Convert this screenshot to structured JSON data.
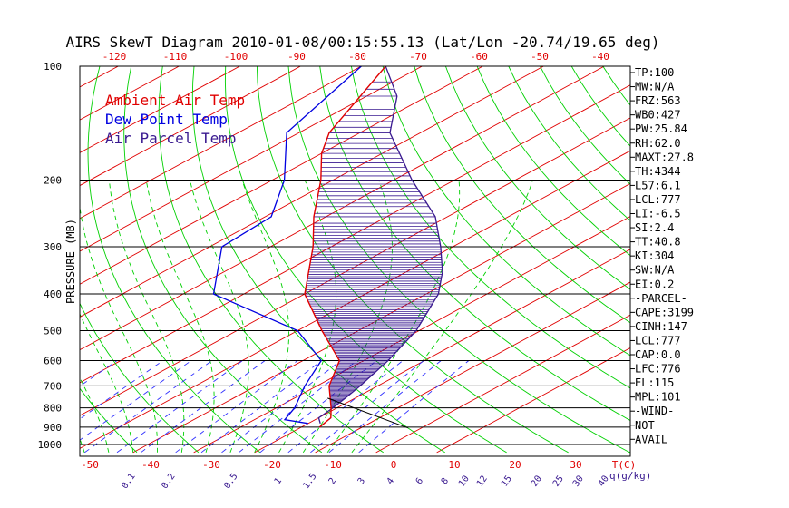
{
  "chart_data": {
    "type": "line",
    "title": "AIRS SkewT Diagram 2010-01-08/00:15:55.13 (Lat/Lon -20.74/19.65 deg)",
    "ylabel": "PRESSURE (MB)",
    "y_scale": "log",
    "y_reversed": true,
    "ylim": [
      100,
      1050
    ],
    "xlim": [
      -50,
      40
    ],
    "pressure_ticks": [
      100,
      200,
      300,
      400,
      500,
      600,
      700,
      800,
      900,
      1000
    ],
    "pressure_tick_labels": [
      "100",
      "200",
      "300",
      "400",
      "500",
      "600",
      "700",
      "800",
      "900",
      "1000"
    ],
    "top_ticks": [
      -120,
      -110,
      -100,
      -90,
      -80,
      -70,
      -60,
      -50,
      -40
    ],
    "top_tick_labels": [
      "-120",
      "-110",
      "-100",
      "-90",
      "-80",
      "-70",
      "-60",
      "-50",
      "-40"
    ],
    "bottom_ticks": [
      -50,
      -40,
      -30,
      -20,
      -10,
      0,
      10,
      20,
      30
    ],
    "bottom_tick_labels": [
      "-50",
      "-40",
      "-30",
      "-20",
      "-10",
      "0",
      "10",
      "20",
      "30"
    ],
    "bottom_axis_unit": "T(C)",
    "mixing_ratio_labels": [
      "0.1",
      "0.2",
      "0.5",
      "1",
      "1.5",
      "2",
      "3",
      "4",
      "6",
      "8",
      "10",
      "12",
      "15",
      "20",
      "25",
      "30",
      "40"
    ],
    "mixing_ratio_unit": "q(g/kg)",
    "legend": {
      "placement": "top-left",
      "entries": [
        {
          "label": "Ambient Air Temp",
          "color": "#e00000"
        },
        {
          "label": "Dew Point Temp",
          "color": "#0000e0"
        },
        {
          "label": "Air Parcel Temp",
          "color": "#3a1a90"
        }
      ]
    },
    "series": [
      {
        "name": "Ambient Air Temp",
        "color": "#e00000",
        "p": [
          900,
          850,
          800,
          700,
          600,
          500,
          400,
          300,
          250,
          200,
          170,
          150,
          100
        ],
        "t": [
          23,
          22,
          19,
          12,
          6,
          -6,
          -20,
          -33,
          -42,
          -52,
          -60,
          -65,
          -76
        ]
      },
      {
        "name": "Dew Point Temp",
        "color": "#0000e0",
        "p": [
          880,
          860,
          800,
          700,
          600,
          500,
          400,
          300,
          250,
          200,
          150,
          100
        ],
        "t": [
          20,
          15,
          13,
          8,
          3,
          -10,
          -35,
          -48,
          -49,
          -58,
          -72,
          -80
        ]
      },
      {
        "name": "Air Parcel Temp",
        "color": "#3a1a90",
        "p": [
          880,
          850,
          800,
          750,
          700,
          600,
          500,
          400,
          350,
          300,
          250,
          200,
          150,
          120,
          100
        ],
        "t": [
          22,
          20,
          19.3,
          18.3,
          17.1,
          14.0,
          9.5,
          2.0,
          -4.0,
          -12,
          -22,
          -37,
          -55,
          -65,
          -76
        ]
      }
    ],
    "wind_marker": {
      "p": 860,
      "t": 26
    },
    "indices": [
      "TP:100",
      "MW:N/A",
      "FRZ:563",
      "WB0:427",
      "PW:25.84",
      "RH:62.0",
      "MAXT:27.8",
      "TH:4344",
      "L57:6.1",
      "LCL:777",
      "LI:-6.5",
      "SI:2.4",
      "TT:40.8",
      "KI:304",
      "SW:N/A",
      "EI:0.2",
      "-PARCEL-",
      "CAPE:3199",
      "CINH:147",
      "LCL:777",
      "CAP:0.0",
      "LFC:776",
      "EL:115",
      "MPL:101",
      "-WIND-",
      "NOT",
      "AVAIL"
    ],
    "colors": {
      "isotherm": "#e00000",
      "dry_adiabat": "#00d000",
      "moist_adiabat": "#00d000",
      "mixing_ratio": "#3030ff",
      "isobar": "#000000",
      "cape_hatch": "#3a1a90"
    },
    "grid": true
  }
}
